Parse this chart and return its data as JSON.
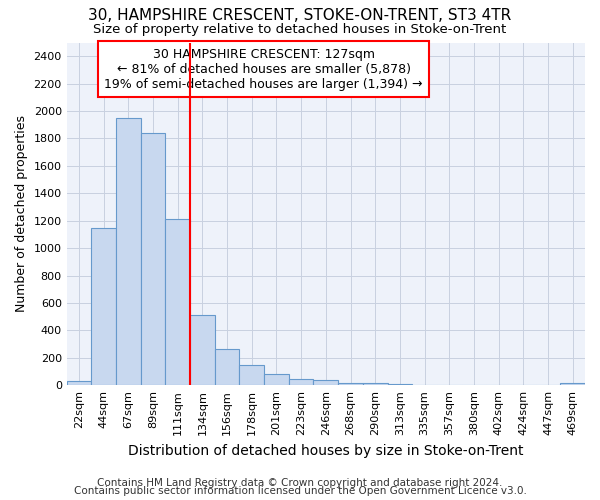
{
  "title1": "30, HAMPSHIRE CRESCENT, STOKE-ON-TRENT, ST3 4TR",
  "title2": "Size of property relative to detached houses in Stoke-on-Trent",
  "xlabel": "Distribution of detached houses by size in Stoke-on-Trent",
  "ylabel": "Number of detached properties",
  "footer1": "Contains HM Land Registry data © Crown copyright and database right 2024.",
  "footer2": "Contains public sector information licensed under the Open Government Licence v3.0.",
  "bar_labels": [
    "22sqm",
    "44sqm",
    "67sqm",
    "89sqm",
    "111sqm",
    "134sqm",
    "156sqm",
    "178sqm",
    "201sqm",
    "223sqm",
    "246sqm",
    "268sqm",
    "290sqm",
    "313sqm",
    "335sqm",
    "357sqm",
    "380sqm",
    "402sqm",
    "424sqm",
    "447sqm",
    "469sqm"
  ],
  "bar_values": [
    30,
    1150,
    1950,
    1840,
    1210,
    515,
    265,
    145,
    78,
    48,
    40,
    18,
    18,
    12,
    0,
    0,
    0,
    0,
    0,
    0,
    15
  ],
  "bar_color": "#c8d8ef",
  "bar_edge_color": "#6699cc",
  "ylim": [
    0,
    2500
  ],
  "yticks": [
    0,
    200,
    400,
    600,
    800,
    1000,
    1200,
    1400,
    1600,
    1800,
    2000,
    2200,
    2400
  ],
  "vline_x": 4.5,
  "vline_color": "red",
  "annotation_line1": "30 HAMPSHIRE CRESCENT: 127sqm",
  "annotation_line2": "← 81% of detached houses are smaller (5,878)",
  "annotation_line3": "19% of semi-detached houses are larger (1,394) →",
  "bg_color": "#eef2fa",
  "grid_color": "#c8d0e0",
  "title_fontsize": 11,
  "subtitle_fontsize": 9.5,
  "annotation_fontsize": 9,
  "ylabel_fontsize": 9,
  "xlabel_fontsize": 10,
  "tick_fontsize": 8,
  "footer_fontsize": 7.5
}
